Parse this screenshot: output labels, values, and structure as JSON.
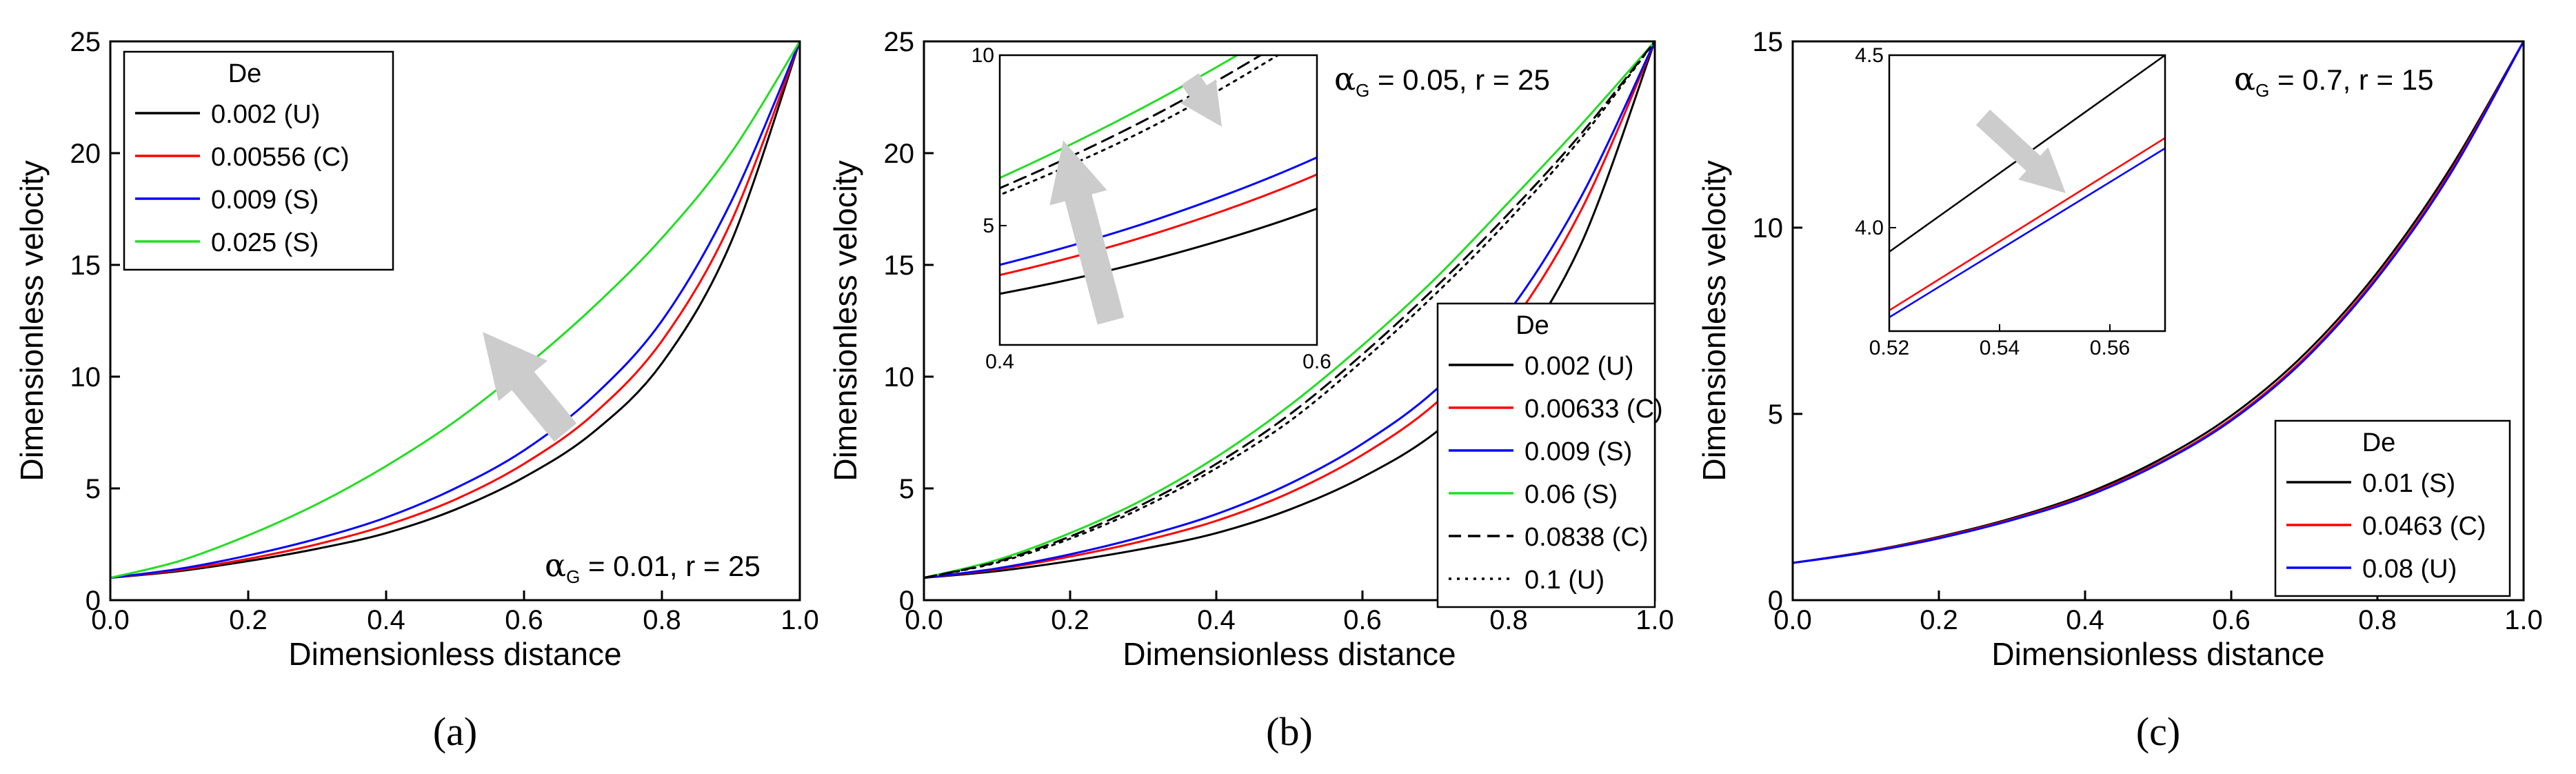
{
  "chart_data": [
    {
      "type": "line",
      "panel_label": "(a)",
      "xlabel": "Dimensionless distance",
      "ylabel": "Dimensionless velocity",
      "xlim": [
        0.0,
        1.0
      ],
      "ylim": [
        0,
        25
      ],
      "xticks": [
        "0.0",
        "0.2",
        "0.4",
        "0.6",
        "0.8",
        "1.0"
      ],
      "yticks": [
        "0",
        "5",
        "10",
        "15",
        "20",
        "25"
      ],
      "annotation": {
        "alpha_symbol": "α",
        "alpha_subscript": "G",
        "text": "= 0.01, r = 25"
      },
      "legend": {
        "title": "De",
        "position": "top-left"
      },
      "arrow": {
        "direction": "up-left",
        "from": [
          0.66,
          7.5
        ],
        "to": [
          0.54,
          12.0
        ]
      },
      "series": [
        {
          "name": "0.002 (U)",
          "color": "#000000",
          "dash": "solid",
          "x": [
            0.0,
            0.1,
            0.2,
            0.3,
            0.4,
            0.5,
            0.6,
            0.7,
            0.8,
            0.9,
            1.0
          ],
          "y": [
            1.0,
            1.3,
            1.75,
            2.3,
            3.0,
            4.05,
            5.5,
            7.5,
            10.6,
            16.0,
            25.0
          ]
        },
        {
          "name": "0.00556 (C)",
          "color": "#ff0000",
          "dash": "solid",
          "x": [
            0.0,
            0.1,
            0.2,
            0.3,
            0.4,
            0.5,
            0.6,
            0.7,
            0.8,
            0.9,
            1.0
          ],
          "y": [
            1.0,
            1.35,
            1.85,
            2.5,
            3.35,
            4.5,
            6.1,
            8.3,
            11.6,
            16.9,
            25.0
          ]
        },
        {
          "name": "0.009 (S)",
          "color": "#0000ff",
          "dash": "solid",
          "x": [
            0.0,
            0.1,
            0.2,
            0.3,
            0.4,
            0.5,
            0.6,
            0.7,
            0.8,
            0.9,
            1.0
          ],
          "y": [
            1.0,
            1.4,
            2.0,
            2.75,
            3.7,
            5.0,
            6.7,
            9.1,
            12.5,
            17.8,
            25.0
          ]
        },
        {
          "name": "0.025 (S)",
          "color": "#22dd22",
          "dash": "solid",
          "x": [
            0.0,
            0.1,
            0.2,
            0.3,
            0.4,
            0.5,
            0.6,
            0.7,
            0.8,
            0.9,
            1.0
          ],
          "y": [
            1.0,
            1.75,
            2.9,
            4.3,
            6.0,
            8.0,
            10.4,
            13.1,
            16.2,
            20.0,
            25.0
          ]
        }
      ]
    },
    {
      "type": "line",
      "panel_label": "(b)",
      "xlabel": "Dimensionless distance",
      "ylabel": "Dimensionless velocity",
      "xlim": [
        0.0,
        1.0
      ],
      "ylim": [
        0,
        25
      ],
      "xticks": [
        "0.0",
        "0.2",
        "0.4",
        "0.6",
        "0.8",
        "1.0"
      ],
      "yticks": [
        "0",
        "5",
        "10",
        "15",
        "20",
        "25"
      ],
      "annotation": {
        "alpha_symbol": "α",
        "alpha_subscript": "G",
        "text": "= 0.05, r = 25"
      },
      "legend": {
        "title": "De",
        "position": "bottom-right"
      },
      "series": [
        {
          "name": "0.002 (U)",
          "color": "#000000",
          "dash": "solid",
          "x": [
            0.0,
            0.1,
            0.2,
            0.3,
            0.4,
            0.5,
            0.6,
            0.7,
            0.8,
            0.9,
            1.0
          ],
          "y": [
            1.0,
            1.3,
            1.75,
            2.3,
            3.0,
            4.05,
            5.5,
            7.5,
            10.6,
            16.0,
            25.0
          ]
        },
        {
          "name": "0.00633 (C)",
          "color": "#ff0000",
          "dash": "solid",
          "x": [
            0.0,
            0.1,
            0.2,
            0.3,
            0.4,
            0.5,
            0.6,
            0.7,
            0.8,
            0.9,
            1.0
          ],
          "y": [
            1.0,
            1.38,
            1.95,
            2.65,
            3.55,
            4.8,
            6.5,
            8.8,
            12.2,
            17.5,
            25.0
          ]
        },
        {
          "name": "0.009 (S)",
          "color": "#0000ff",
          "dash": "solid",
          "x": [
            0.0,
            0.1,
            0.2,
            0.3,
            0.4,
            0.5,
            0.6,
            0.7,
            0.8,
            0.9,
            1.0
          ],
          "y": [
            1.0,
            1.42,
            2.05,
            2.85,
            3.85,
            5.2,
            7.0,
            9.4,
            12.9,
            18.1,
            25.0
          ]
        },
        {
          "name": "0.06 (S)",
          "color": "#22dd22",
          "dash": "solid",
          "x": [
            0.0,
            0.1,
            0.2,
            0.3,
            0.4,
            0.5,
            0.6,
            0.7,
            0.8,
            0.9,
            1.0
          ],
          "y": [
            1.0,
            1.8,
            3.0,
            4.5,
            6.4,
            8.7,
            11.4,
            14.4,
            17.8,
            21.3,
            25.0
          ]
        },
        {
          "name": "0.0838 (C)",
          "color": "#000000",
          "dash": "dashed",
          "x": [
            0.0,
            0.1,
            0.2,
            0.3,
            0.4,
            0.5,
            0.6,
            0.7,
            0.8,
            0.9,
            1.0
          ],
          "y": [
            1.0,
            1.72,
            2.85,
            4.3,
            6.1,
            8.3,
            11.0,
            14.0,
            17.3,
            20.9,
            25.0
          ]
        },
        {
          "name": "0.1 (U)",
          "color": "#000000",
          "dash": "dotted",
          "x": [
            0.0,
            0.1,
            0.2,
            0.3,
            0.4,
            0.5,
            0.6,
            0.7,
            0.8,
            0.9,
            1.0
          ],
          "y": [
            1.0,
            1.68,
            2.75,
            4.15,
            5.9,
            8.0,
            10.7,
            13.7,
            17.0,
            20.7,
            25.0
          ]
        }
      ],
      "inset": {
        "xlim": [
          0.4,
          0.6
        ],
        "ylim": [
          1.5,
          10
        ],
        "xticks": [
          "0.4",
          "0.6"
        ],
        "yticks": [
          "5",
          "10"
        ],
        "arrows": [
          {
            "direction": "up",
            "from": [
              0.47,
              2.2
            ],
            "to": [
              0.44,
              7.5
            ]
          },
          {
            "direction": "down-right",
            "from": [
              0.52,
              9.3
            ],
            "to": [
              0.54,
              7.9
            ]
          }
        ]
      }
    },
    {
      "type": "line",
      "panel_label": "(c)",
      "xlabel": "Dimensionless distance",
      "ylabel": "Dimensionless velocity",
      "xlim": [
        0.0,
        1.0
      ],
      "ylim": [
        0,
        15
      ],
      "xticks": [
        "0.0",
        "0.2",
        "0.4",
        "0.6",
        "0.8",
        "1.0"
      ],
      "yticks": [
        "0",
        "5",
        "10",
        "15"
      ],
      "annotation": {
        "alpha_symbol": "α",
        "alpha_subscript": "G",
        "text": "= 0.7, r = 15"
      },
      "legend": {
        "title": "De",
        "position": "bottom-right"
      },
      "series": [
        {
          "name": "0.01 (S)",
          "color": "#000000",
          "dash": "solid",
          "x": [
            0.0,
            0.1,
            0.2,
            0.3,
            0.4,
            0.5,
            0.6,
            0.7,
            0.8,
            0.9,
            1.0
          ],
          "y": [
            1.0,
            1.3,
            1.7,
            2.2,
            2.85,
            3.75,
            4.95,
            6.6,
            8.8,
            11.6,
            15.0
          ]
        },
        {
          "name": "0.0463 (C)",
          "color": "#ff0000",
          "dash": "solid",
          "x": [
            0.0,
            0.1,
            0.2,
            0.3,
            0.4,
            0.5,
            0.6,
            0.7,
            0.8,
            0.9,
            1.0
          ],
          "y": [
            1.0,
            1.29,
            1.68,
            2.17,
            2.8,
            3.68,
            4.86,
            6.5,
            8.7,
            11.5,
            15.0
          ]
        },
        {
          "name": "0.08 (U)",
          "color": "#0000ff",
          "dash": "solid",
          "x": [
            0.0,
            0.1,
            0.2,
            0.3,
            0.4,
            0.5,
            0.6,
            0.7,
            0.8,
            0.9,
            1.0
          ],
          "y": [
            1.0,
            1.28,
            1.66,
            2.15,
            2.77,
            3.65,
            4.82,
            6.45,
            8.65,
            11.45,
            15.0
          ]
        }
      ],
      "inset": {
        "xlim": [
          0.52,
          0.57
        ],
        "ylim": [
          3.7,
          4.5
        ],
        "xticks": [
          "0.52",
          "0.54",
          "0.56"
        ],
        "yticks": [
          "4.0",
          "4.5"
        ],
        "series": [
          {
            "color": "#000000",
            "x": [
              0.52,
              0.57
            ],
            "y": [
              3.93,
              4.5
            ]
          },
          {
            "color": "#ff0000",
            "x": [
              0.52,
              0.57
            ],
            "y": [
              3.76,
              4.26
            ]
          },
          {
            "color": "#0000ff",
            "x": [
              0.52,
              0.57
            ],
            "y": [
              3.74,
              4.23
            ]
          }
        ],
        "arrows": [
          {
            "direction": "down-right",
            "from": [
              0.537,
              4.32
            ],
            "to": [
              0.552,
              4.1
            ]
          }
        ]
      }
    }
  ]
}
